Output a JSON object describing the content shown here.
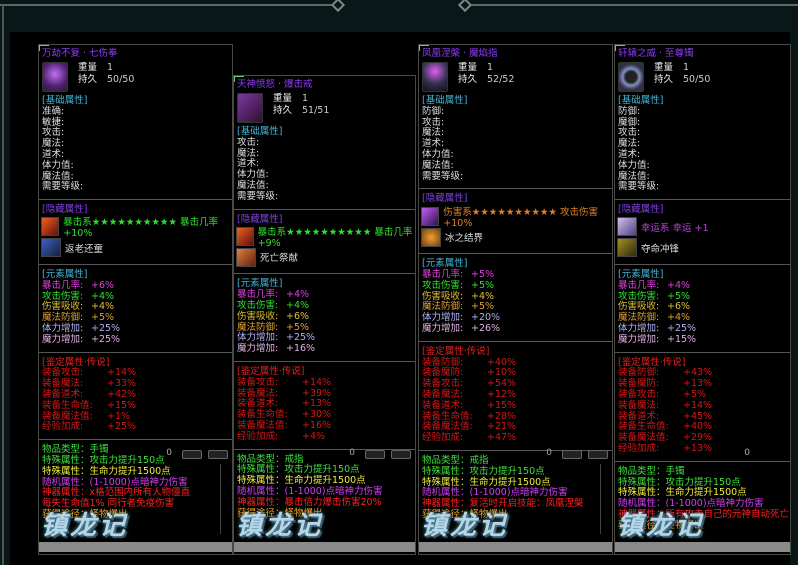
{
  "colors": {
    "title": "#8b3df2",
    "basic": "#43b6d6",
    "hidden": "#8040e0",
    "ident": "#e02020",
    "crit": "#e040e0",
    "atk": "#30e030",
    "absorb": "#e0c030",
    "mdef": "#e0a030",
    "hp": "#b0b0f0",
    "mp": "#e0b0e0",
    "type": "#40e040",
    "special1": "#40e040",
    "special2": "#f0f040",
    "random": "#d040f0",
    "artifact": "#ff2020",
    "obtain": "#f0a020"
  },
  "labels": {
    "weight": "重量",
    "durability": "持久",
    "basic_header": "[基础属性]",
    "hidden_header": "[隐藏属性]",
    "element_header": "[元素属性]",
    "ident_header": "[鉴定属性·传说]",
    "logo": "镇龙记",
    "ghost_zero": "0"
  },
  "panels": [
    {
      "title": "万劫不复 · 七伤拳",
      "weight": "1",
      "durability": "50/50",
      "icon": "purple-fist-icon",
      "basic": [
        "准确:",
        "敏捷:",
        "攻击:",
        "魔法:",
        "道术:",
        "体力值:",
        "魔法值:",
        "需要等级:"
      ],
      "skills": [
        {
          "icon": "crit-skill-icon",
          "text": "暴击系★★★★★★★★★★ 暴击几率 +10%",
          "color": "#30e030"
        },
        {
          "icon": "rejuvenate-skill-icon",
          "text": "返老还童",
          "color": "#dddddd"
        }
      ],
      "elements": [
        {
          "k": "暴击几率:",
          "v": "+6%"
        },
        {
          "k": "攻击伤害:",
          "v": "+4%"
        },
        {
          "k": "伤害吸收:",
          "v": "+4%"
        },
        {
          "k": "魔法防御:",
          "v": "+5%"
        },
        {
          "k": "体力增加:",
          "v": "+25%"
        },
        {
          "k": "魔力增加:",
          "v": "+25%"
        }
      ],
      "ident": [
        {
          "k": "装备攻击:",
          "v": "+14%"
        },
        {
          "k": "装备魔法:",
          "v": "+33%"
        },
        {
          "k": "装备道术:",
          "v": "+42%"
        },
        {
          "k": "装备生命值:",
          "v": "+15%"
        },
        {
          "k": "装备魔法值:",
          "v": "+1%"
        },
        {
          "k": "经验加成:",
          "v": "+25%"
        }
      ],
      "bottom": [
        {
          "t": "物品类型：手镯",
          "c": "type"
        },
        {
          "t": "特殊属性：攻击力提升150点",
          "c": "special1"
        },
        {
          "t": "特殊属性：生命力提升1500点",
          "c": "special2"
        },
        {
          "t": "随机属性：(1-1000)点暗神力伤害",
          "c": "random"
        },
        {
          "t": "神器属性：x格范围内所有人物僵直",
          "c": "artifact"
        },
        {
          "t": "每失生命值1% 同行者免疫伤害",
          "c": "artifact"
        },
        {
          "t": "获得途径：怪物爆出",
          "c": "obtain"
        }
      ]
    },
    {
      "title": "天神愤怒 · 爆击戒",
      "weight": "1",
      "durability": "51/51",
      "icon": "purple-ring-icon",
      "basic": [
        "攻击:",
        "魔法:",
        "道术:",
        "体力值:",
        "魔法值:",
        "需要等级:"
      ],
      "skills": [
        {
          "icon": "crit-skill-icon",
          "text": "暴击系★★★★★★★★★★ 暴击几率 +9%",
          "color": "#30e030"
        },
        {
          "icon": "sacrifice-skill-icon",
          "text": "死亡祭献",
          "color": "#dddddd"
        }
      ],
      "elements": [
        {
          "k": "暴击几率:",
          "v": "+4%"
        },
        {
          "k": "攻击伤害:",
          "v": "+4%"
        },
        {
          "k": "伤害吸收:",
          "v": "+6%"
        },
        {
          "k": "魔法防御:",
          "v": "+5%"
        },
        {
          "k": "体力增加:",
          "v": "+25%"
        },
        {
          "k": "魔力增加:",
          "v": "+16%"
        }
      ],
      "ident": [
        {
          "k": "装备攻击:",
          "v": "+14%"
        },
        {
          "k": "装备魔法:",
          "v": "+39%"
        },
        {
          "k": "装备道术:",
          "v": "+13%"
        },
        {
          "k": "装备生命值:",
          "v": "+30%"
        },
        {
          "k": "装备魔法值:",
          "v": "+16%"
        },
        {
          "k": "经验加成:",
          "v": "+4%"
        }
      ],
      "bottom": [
        {
          "t": "物品类型：戒指",
          "c": "type"
        },
        {
          "t": "特殊属性：攻击力提升150点",
          "c": "special1"
        },
        {
          "t": "特殊属性：生命力提升1500点",
          "c": "special2"
        },
        {
          "t": "随机属性：(1-1000)点暗神力伤害",
          "c": "random"
        },
        {
          "t": "神器属性：暴击倍力爆击伤害20%",
          "c": "artifact"
        },
        {
          "t": "获得途径：怪物爆出",
          "c": "obtain"
        }
      ]
    },
    {
      "title": "凤凰涅槃 · 魔焰指",
      "weight": "1",
      "durability": "52/52",
      "icon": "orb-ring-icon",
      "basic": [
        "防御:",
        "攻击:",
        "魔法:",
        "道术:",
        "体力值:",
        "魔法值:",
        "需要等级:"
      ],
      "skills": [
        {
          "icon": "damage-skill-icon",
          "text": "伤害系★★★★★★★★★★ 攻击伤害 +10%",
          "color": "#e08020"
        },
        {
          "icon": "ice-barrier-skill-icon",
          "text": "冰之结界",
          "color": "#dddddd"
        }
      ],
      "elements": [
        {
          "k": "暴击几率:",
          "v": "+5%"
        },
        {
          "k": "攻击伤害:",
          "v": "+5%"
        },
        {
          "k": "伤害吸收:",
          "v": "+4%"
        },
        {
          "k": "魔法防御:",
          "v": "+5%"
        },
        {
          "k": "体力增加:",
          "v": "+20%"
        },
        {
          "k": "魔力增加:",
          "v": "+26%"
        }
      ],
      "ident": [
        {
          "k": "装备防御:",
          "v": "+40%"
        },
        {
          "k": "装备魔防:",
          "v": "+10%"
        },
        {
          "k": "装备攻击:",
          "v": "+54%"
        },
        {
          "k": "装备魔法:",
          "v": "+12%"
        },
        {
          "k": "装备道术:",
          "v": "+15%"
        },
        {
          "k": "装备生命值:",
          "v": "+28%"
        },
        {
          "k": "装备魔法值:",
          "v": "+21%"
        },
        {
          "k": "经验加成:",
          "v": "+47%"
        }
      ],
      "bottom": [
        {
          "t": "物品类型：戒指",
          "c": "type"
        },
        {
          "t": "特殊属性：攻击力提升150点",
          "c": "special1"
        },
        {
          "t": "特殊属性：生命力提升1500点",
          "c": "special2"
        },
        {
          "t": "随机属性：(1-1000)点暗神力伤害",
          "c": "random"
        },
        {
          "t": "神器属性：复活时开启技能：凤凰涅槃",
          "c": "artifact"
        },
        {
          "t": "获得途径：怪物爆出",
          "c": "obtain"
        }
      ]
    },
    {
      "title": "轩辕之威 · 至尊镯",
      "weight": "1",
      "durability": "50/50",
      "icon": "silver-bracelet-icon",
      "basic": [
        "防御:",
        "魔御:",
        "攻击:",
        "魔法:",
        "道术:",
        "体力值:",
        "魔法值:",
        "需要等级:"
      ],
      "skills": [
        {
          "icon": "luck-skill-icon",
          "text": "幸运系 幸运 +1",
          "color": "#c040e0"
        },
        {
          "icon": "charge-skill-icon",
          "text": "夺命冲锋",
          "color": "#dddddd"
        }
      ],
      "elements": [
        {
          "k": "暴击几率:",
          "v": "+4%"
        },
        {
          "k": "攻击伤害:",
          "v": "+5%"
        },
        {
          "k": "伤害吸收:",
          "v": "+6%"
        },
        {
          "k": "魔法防御:",
          "v": "+4%"
        },
        {
          "k": "体力增加:",
          "v": "+25%"
        },
        {
          "k": "魔力增加:",
          "v": "+15%"
        }
      ],
      "ident": [
        {
          "k": "装备防御:",
          "v": "+43%"
        },
        {
          "k": "装备魔防:",
          "v": "+13%"
        },
        {
          "k": "装备攻击:",
          "v": "+5%"
        },
        {
          "k": "装备魔法:",
          "v": "+14%"
        },
        {
          "k": "装备道术:",
          "v": "+45%"
        },
        {
          "k": "装备生命值:",
          "v": "+40%"
        },
        {
          "k": "装备魔法值:",
          "v": "+29%"
        },
        {
          "k": "经验加成:",
          "v": "+13%"
        }
      ],
      "bottom": [
        {
          "t": "物品类型：手镯",
          "c": "type"
        },
        {
          "t": "特殊属性：攻击力提升150点",
          "c": "special1"
        },
        {
          "t": "特殊属性：生命力提升1500点",
          "c": "special2"
        },
        {
          "t": "随机属性：(1-1000)点暗神力伤害",
          "c": "random"
        },
        {
          "t": "神器属性：所有攻击自己的元神自动死亡",
          "c": "artifact"
        },
        {
          "t": "获得途径：怪物爆出",
          "c": "obtain"
        }
      ]
    }
  ]
}
